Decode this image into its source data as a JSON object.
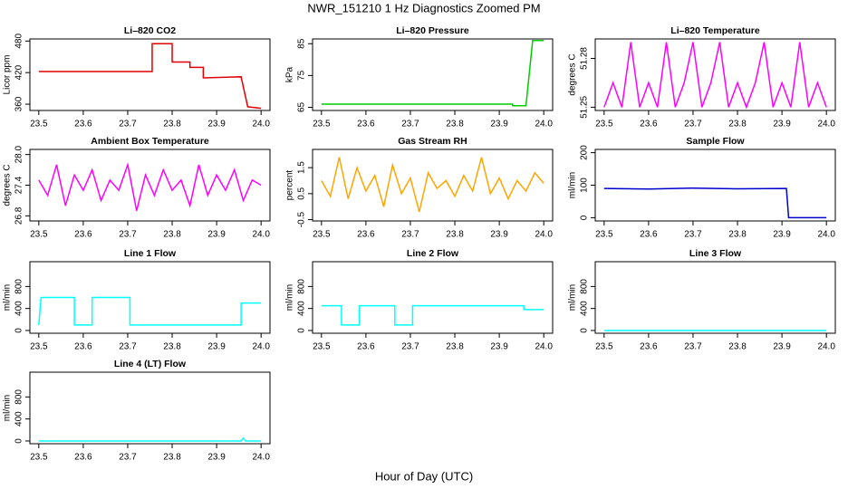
{
  "title": "NWR_151210  1 Hz Diagnostics Zoomed PM",
  "xlabel": "Hour of Day (UTC)",
  "chart_data": [
    {
      "type": "line",
      "title": "Li–820 CO2",
      "ylabel": "Licor ppm",
      "xlim": [
        23.48,
        24.02
      ],
      "xticks": [
        23.5,
        23.6,
        23.7,
        23.8,
        23.9,
        {
          "value": 24,
          "label": "24.0"
        }
      ],
      "ylim": [
        348,
        484
      ],
      "yticks": [
        360,
        420,
        480
      ],
      "x": [
        23.5,
        23.755,
        23.755,
        23.8,
        23.8,
        23.84,
        23.84,
        23.87,
        23.87,
        23.955,
        23.97,
        24.0
      ],
      "series": [
        {
          "color": "#e00000",
          "values": [
            422,
            422,
            475,
            475,
            440,
            440,
            430,
            430,
            410,
            412,
            355,
            352
          ]
        }
      ]
    },
    {
      "type": "line",
      "title": "Li–820 Pressure",
      "ylabel": "kPa",
      "xlim": [
        23.48,
        24.02
      ],
      "xticks": [
        23.5,
        23.6,
        23.7,
        23.8,
        23.9,
        {
          "value": 24,
          "label": "24.0"
        }
      ],
      "ylim": [
        64,
        86.5
      ],
      "yticks": [
        65,
        75,
        85
      ],
      "x": [
        23.5,
        23.93,
        23.93,
        23.96,
        23.975,
        24.0
      ],
      "series": [
        {
          "color": "#00cc00",
          "values": [
            66,
            66,
            65.5,
            65.5,
            86,
            86
          ]
        }
      ]
    },
    {
      "type": "line",
      "title": "Li–820 Temperature",
      "ylabel": "degrees C",
      "xlim": [
        23.48,
        24.02
      ],
      "xticks": [
        23.5,
        23.6,
        23.7,
        23.8,
        23.9,
        {
          "value": 24,
          "label": "24.0"
        }
      ],
      "ylim": [
        51.248,
        51.292
      ],
      "yticks": [
        51.25,
        51.28
      ],
      "x": [
        23.5,
        23.52,
        23.54,
        23.56,
        23.58,
        23.6,
        23.62,
        23.64,
        23.66,
        23.68,
        23.7,
        23.72,
        23.74,
        23.76,
        23.78,
        23.8,
        23.82,
        23.84,
        23.86,
        23.88,
        23.9,
        23.92,
        23.94,
        23.96,
        23.98,
        24.0
      ],
      "series": [
        {
          "color": "#ff00ff",
          "values": [
            51.25,
            51.265,
            51.25,
            51.29,
            51.25,
            51.265,
            51.25,
            51.29,
            51.25,
            51.265,
            51.29,
            51.25,
            51.265,
            51.29,
            51.25,
            51.265,
            51.25,
            51.265,
            51.29,
            51.25,
            51.265,
            51.25,
            51.29,
            51.25,
            51.265,
            51.25
          ]
        }
      ]
    },
    {
      "type": "line",
      "title": "Ambient Box Temperature",
      "ylabel": "degrees C",
      "xlim": [
        23.48,
        24.02
      ],
      "xticks": [
        23.5,
        23.6,
        23.7,
        23.8,
        23.9,
        {
          "value": 24,
          "label": "24.0"
        }
      ],
      "ylim": [
        26.7,
        28.1
      ],
      "yticks": [
        26.8,
        27.4,
        {
          "value": 28,
          "label": "28.0"
        }
      ],
      "x": [
        23.5,
        23.52,
        23.54,
        23.56,
        23.58,
        23.6,
        23.62,
        23.64,
        23.66,
        23.68,
        23.7,
        23.72,
        23.74,
        23.76,
        23.78,
        23.8,
        23.82,
        23.84,
        23.86,
        23.88,
        23.9,
        23.92,
        23.94,
        23.96,
        23.98,
        24.0
      ],
      "series": [
        {
          "color": "#ff00ff",
          "values": [
            27.5,
            27.2,
            27.8,
            27.0,
            27.6,
            27.3,
            27.7,
            27.1,
            27.5,
            27.3,
            27.8,
            26.9,
            27.6,
            27.2,
            27.7,
            27.3,
            27.5,
            27.0,
            27.8,
            27.2,
            27.6,
            27.3,
            27.7,
            27.1,
            27.5,
            27.4
          ]
        }
      ]
    },
    {
      "type": "line",
      "title": "Gas Stream RH",
      "ylabel": "percent",
      "xlim": [
        23.48,
        24.02
      ],
      "xticks": [
        23.5,
        23.6,
        23.7,
        23.8,
        23.9,
        {
          "value": 24,
          "label": "24.0"
        }
      ],
      "ylim": [
        -0.55,
        2.2
      ],
      "yticks": [
        -0.5,
        0.5,
        1.5
      ],
      "x": [
        23.5,
        23.52,
        23.54,
        23.56,
        23.58,
        23.6,
        23.62,
        23.64,
        23.66,
        23.68,
        23.7,
        23.72,
        23.74,
        23.76,
        23.78,
        23.8,
        23.82,
        23.84,
        23.86,
        23.88,
        23.9,
        23.92,
        23.94,
        23.96,
        23.98,
        24.0
      ],
      "series": [
        {
          "color": "#ffa500",
          "values": [
            1.0,
            0.4,
            1.9,
            0.3,
            1.5,
            0.6,
            1.2,
            0.0,
            1.6,
            0.5,
            1.1,
            -0.2,
            1.3,
            0.7,
            1.0,
            0.4,
            1.2,
            0.6,
            1.9,
            0.5,
            1.1,
            0.3,
            1.0,
            0.6,
            1.3,
            0.9
          ]
        }
      ]
    },
    {
      "type": "line",
      "title": "Sample Flow",
      "ylabel": "ml/min",
      "xlim": [
        23.48,
        24.02
      ],
      "xticks": [
        23.5,
        23.6,
        23.7,
        23.8,
        23.9,
        {
          "value": 24,
          "label": "24.0"
        }
      ],
      "ylim": [
        -10,
        210
      ],
      "yticks": [
        0,
        100,
        200
      ],
      "x": [
        23.5,
        23.6,
        23.7,
        23.8,
        23.91,
        23.915,
        24.0
      ],
      "series": [
        {
          "color": "#0000cc",
          "values": [
            90,
            88,
            91,
            89,
            90,
            0,
            0
          ]
        }
      ]
    },
    {
      "type": "line",
      "title": "Line 1 Flow",
      "ylabel": "ml/min",
      "xlim": [
        23.48,
        24.02
      ],
      "xticks": [
        23.5,
        23.6,
        23.7,
        23.8,
        23.9,
        {
          "value": 24,
          "label": "24.0"
        }
      ],
      "ylim": [
        -50,
        1250
      ],
      "yticks": [
        0,
        400,
        800
      ],
      "x": [
        23.5,
        23.505,
        23.58,
        23.58,
        23.62,
        23.62,
        23.705,
        23.705,
        23.955,
        23.955,
        24.0
      ],
      "series": [
        {
          "color": "#00ffff",
          "values": [
            100,
            600,
            600,
            100,
            100,
            600,
            600,
            100,
            100,
            500,
            500
          ]
        }
      ]
    },
    {
      "type": "line",
      "title": "Line 2 Flow",
      "ylabel": "ml/min",
      "xlim": [
        23.48,
        24.02
      ],
      "xticks": [
        23.5,
        23.6,
        23.7,
        23.8,
        23.9,
        {
          "value": 24,
          "label": "24.0"
        }
      ],
      "ylim": [
        -50,
        1250
      ],
      "yticks": [
        0,
        400,
        800
      ],
      "x": [
        23.5,
        23.545,
        23.545,
        23.585,
        23.585,
        23.665,
        23.665,
        23.705,
        23.705,
        23.955,
        23.955,
        24.0
      ],
      "series": [
        {
          "color": "#00ffff",
          "values": [
            450,
            450,
            100,
            100,
            450,
            450,
            100,
            100,
            450,
            450,
            380,
            380
          ]
        }
      ]
    },
    {
      "type": "line",
      "title": "Line 3 Flow",
      "ylabel": "ml/min",
      "xlim": [
        23.48,
        24.02
      ],
      "xticks": [
        23.5,
        23.6,
        23.7,
        23.8,
        23.9,
        {
          "value": 24,
          "label": "24.0"
        }
      ],
      "ylim": [
        -50,
        1250
      ],
      "yticks": [
        0,
        400,
        800
      ],
      "x": [
        23.5,
        24.0
      ],
      "series": [
        {
          "color": "#00ffff",
          "values": [
            0,
            0
          ]
        }
      ]
    },
    {
      "type": "line",
      "title": "Line 4 (LT) Flow",
      "ylabel": "ml/min",
      "xlim": [
        23.48,
        24.02
      ],
      "xticks": [
        23.5,
        23.6,
        23.7,
        23.8,
        23.9,
        {
          "value": 24,
          "label": "24.0"
        }
      ],
      "ylim": [
        -50,
        1250
      ],
      "yticks": [
        0,
        400,
        800
      ],
      "x": [
        23.5,
        23.955,
        23.96,
        23.965,
        24.0
      ],
      "series": [
        {
          "color": "#00ffff",
          "values": [
            0,
            0,
            50,
            0,
            0
          ]
        }
      ]
    }
  ]
}
